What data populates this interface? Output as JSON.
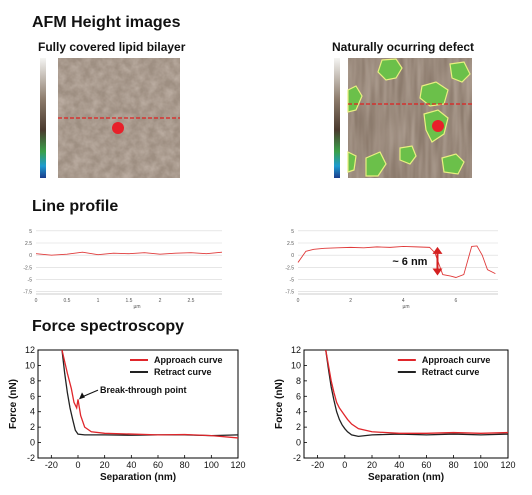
{
  "sections": {
    "afm": "AFM Height images",
    "line": "Line profile",
    "force": "Force spectroscopy"
  },
  "afm_left": {
    "title": "Fully covered lipid bilayer"
  },
  "afm_right": {
    "title": "Naturally ocurring defect"
  },
  "line_annotation": "~ 6 nm",
  "chart_data": [
    {
      "type": "line",
      "panel": "line-profile-left",
      "x": [
        0,
        0.25,
        0.5,
        0.75,
        1.0,
        1.25,
        1.5,
        1.75,
        2.0,
        2.25,
        2.5,
        2.75,
        3.0
      ],
      "series": [
        {
          "values": [
            0.3,
            0.0,
            0.2,
            0.6,
            0.1,
            0.4,
            0.3,
            0.5,
            0.2,
            0.4,
            0.5,
            0.3,
            0.6
          ]
        }
      ],
      "yticks": [
        "5",
        "2.5",
        "0",
        "-2.5",
        "-5",
        "-7.5"
      ],
      "xticks": [
        "0",
        "0.5",
        "1",
        "1.5",
        "2",
        "2.5"
      ],
      "xunit": "µm",
      "xlim": [
        0,
        3.0
      ],
      "ylim": [
        -8,
        6
      ]
    },
    {
      "type": "line",
      "panel": "line-profile-right",
      "x": [
        0,
        0.3,
        0.6,
        1.0,
        1.5,
        2.0,
        2.5,
        3.0,
        3.5,
        4.0,
        4.5,
        5.0,
        5.2,
        5.5,
        5.8,
        6.0,
        6.3,
        6.6,
        6.8,
        7.0,
        7.2,
        7.5
      ],
      "series": [
        {
          "values": [
            -1.5,
            0.8,
            1.2,
            1.4,
            1.5,
            1.6,
            1.5,
            1.7,
            1.6,
            1.8,
            1.7,
            1.6,
            0.5,
            -4.0,
            -4.3,
            -4.6,
            -4.0,
            1.8,
            1.9,
            0.0,
            -3.0,
            -3.8
          ]
        }
      ],
      "yticks": [
        "5",
        "2.5",
        "0",
        "-2.5",
        "-5",
        "-7.5"
      ],
      "xticks": [
        "0",
        "2",
        "4",
        "6"
      ],
      "xunit": "µm",
      "xlim": [
        0,
        7.6
      ],
      "ylim": [
        -8,
        6
      ]
    },
    {
      "type": "line",
      "panel": "force-left",
      "xlabel": "Separation (nm)",
      "ylabel": "Force (nN)",
      "xlim": [
        -30,
        120
      ],
      "ylim": [
        -2,
        12
      ],
      "xticks": [
        -20,
        0,
        20,
        40,
        60,
        80,
        100,
        120
      ],
      "yticks": [
        -2,
        0,
        2,
        4,
        6,
        8,
        10,
        12
      ],
      "legend": "top-right",
      "annotation": "Break-through point",
      "series": [
        {
          "name": "Approach curve",
          "color": "#e0262b",
          "x": [
            -12,
            -8,
            -5,
            -3,
            -1,
            0,
            2,
            5,
            10,
            20,
            40,
            60,
            80,
            100,
            120
          ],
          "values": [
            12,
            9,
            7,
            5.2,
            4.5,
            5.6,
            3.5,
            2.0,
            1.4,
            1.2,
            1.1,
            1.0,
            1.05,
            0.9,
            0.6
          ]
        },
        {
          "name": "Retract curve",
          "color": "#222222",
          "x": [
            -12,
            -10,
            -8,
            -6,
            -4,
            -2,
            0,
            5,
            20,
            40,
            60,
            80,
            100,
            120
          ],
          "values": [
            12,
            9,
            6.5,
            4.5,
            3,
            1.6,
            1.1,
            1.0,
            1.0,
            0.95,
            1.0,
            1.0,
            0.9,
            1.0
          ]
        }
      ]
    },
    {
      "type": "line",
      "panel": "force-right",
      "xlabel": "Separation (nm)",
      "ylabel": "Force (nN)",
      "xlim": [
        -30,
        120
      ],
      "ylim": [
        -2,
        12
      ],
      "xticks": [
        -20,
        0,
        20,
        40,
        60,
        80,
        100,
        120
      ],
      "yticks": [
        -2,
        0,
        2,
        4,
        6,
        8,
        10,
        12
      ],
      "legend": "top-right",
      "series": [
        {
          "name": "Approach curve",
          "color": "#e0262b",
          "x": [
            -14,
            -12,
            -10,
            -8,
            -6,
            -4,
            -2,
            0,
            2,
            5,
            10,
            20,
            40,
            60,
            80,
            100,
            120
          ],
          "values": [
            12,
            10,
            8,
            6.5,
            5.2,
            4.5,
            4.0,
            3.5,
            3.0,
            2.4,
            1.8,
            1.4,
            1.2,
            1.2,
            1.3,
            1.2,
            1.3
          ]
        },
        {
          "name": "Retract curve",
          "color": "#222222",
          "x": [
            -14,
            -12,
            -10,
            -8,
            -6,
            -4,
            -2,
            0,
            2,
            5,
            10,
            20,
            40,
            60,
            80,
            100,
            120
          ],
          "values": [
            12,
            9.5,
            7.2,
            5.5,
            4.0,
            3.0,
            2.3,
            1.8,
            1.4,
            1.0,
            0.8,
            1.0,
            1.1,
            1.0,
            1.1,
            1.0,
            1.1
          ]
        }
      ]
    }
  ]
}
